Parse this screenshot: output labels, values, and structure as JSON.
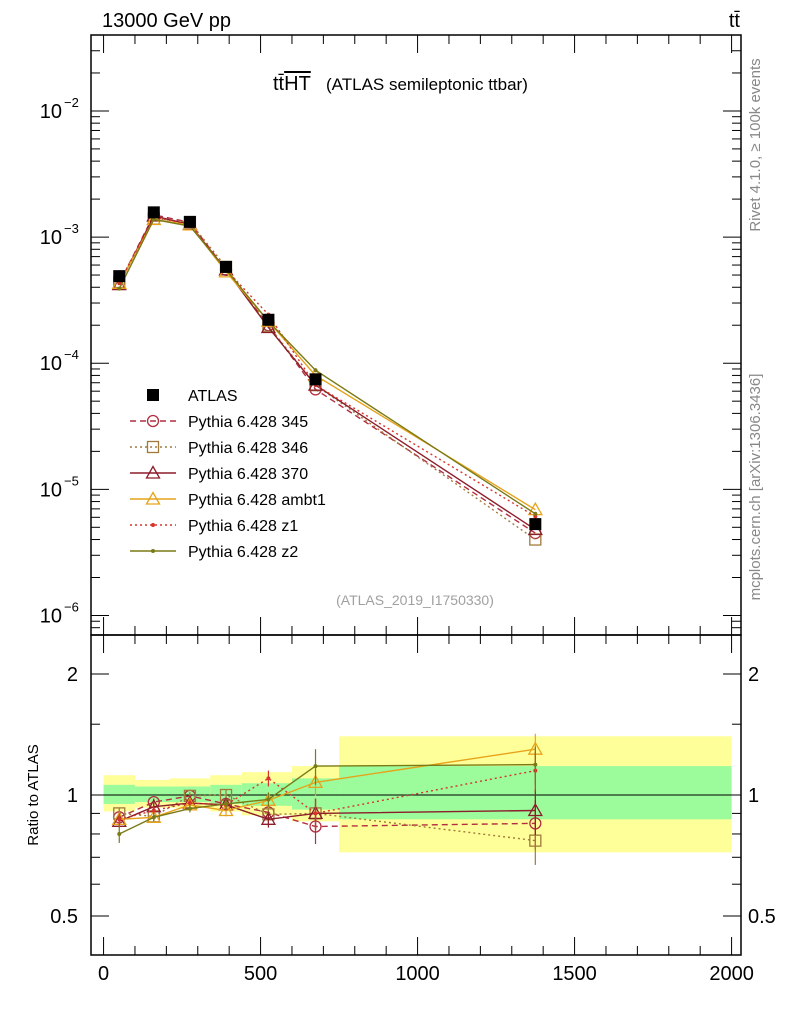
{
  "header": {
    "energy_label": "13000 GeV pp",
    "process_label": "tt̄",
    "plot_title": "tt̄HT",
    "plot_title_hat": "tt̄",
    "plot_title_rest": "HT",
    "plot_subtitle": "(ATLAS semileptonic ttbar)",
    "analysis_id": "(ATLAS_2019_I1750330)"
  },
  "side_labels": {
    "rivet": "Rivet 4.1.0, ≥ 100k events",
    "mcplots": "mcplots.cern.ch [arXiv:1306.3436]"
  },
  "chart_data": {
    "type": "line",
    "x": [
      50,
      160,
      275,
      390,
      525,
      675,
      1375
    ],
    "xlim": [
      -40,
      2030
    ],
    "xticks": [
      0,
      500,
      1000,
      1500,
      2000
    ],
    "main": {
      "scale": "log",
      "ylim": [
        7e-07,
        0.04
      ],
      "yticks": [
        {
          "value": 1e-06,
          "label": "10",
          "exp": "−6"
        },
        {
          "value": 1e-05,
          "label": "10",
          "exp": "−5"
        },
        {
          "value": 0.0001,
          "label": "10",
          "exp": "−4"
        },
        {
          "value": 0.001,
          "label": "10",
          "exp": "−3"
        },
        {
          "value": 0.01,
          "label": "10",
          "exp": "−2"
        }
      ],
      "data_series": {
        "name": "ATLAS",
        "values": [
          0.00049,
          0.00157,
          0.00132,
          0.00058,
          0.000221,
          7.45e-05,
          5.3e-06
        ]
      },
      "series": [
        {
          "name": "Pythia 6.428 345",
          "color": "#b22f41",
          "style": "dashed",
          "marker": "circle",
          "values": [
            0.00043,
            0.0015,
            0.00131,
            0.00055,
            0.0002,
            6.2e-05,
            4.5e-06
          ]
        },
        {
          "name": "Pythia 6.428 346",
          "color": "#a07a3b",
          "style": "dotted",
          "marker": "square",
          "values": [
            0.00044,
            0.0014,
            0.00131,
            0.00058,
            0.000198,
            6.7e-05,
            4e-06
          ]
        },
        {
          "name": "Pythia 6.428 370",
          "color": "#8c1d2a",
          "style": "solid",
          "marker": "triangle",
          "values": [
            0.00042,
            0.00147,
            0.00126,
            0.00055,
            0.000192,
            6.7e-05,
            4.8e-06
          ]
        },
        {
          "name": "Pythia 6.428 ambt1",
          "color": "#e6a31c",
          "style": "solid",
          "marker": "triangle",
          "values": [
            0.00043,
            0.00138,
            0.00125,
            0.00053,
            0.000215,
            8e-05,
            6.9e-06
          ]
        },
        {
          "name": "Pythia 6.428 z1",
          "color": "#d6342d",
          "style": "dotted",
          "marker": "dot",
          "values": [
            0.00043,
            0.00144,
            0.00126,
            0.00055,
            0.000243,
            6.7e-05,
            6.1e-06
          ]
        },
        {
          "name": "Pythia 6.428 z2",
          "color": "#7a7a16",
          "style": "solid",
          "marker": "dot",
          "values": [
            0.00039,
            0.00138,
            0.00122,
            0.00055,
            0.000215,
            8.8e-05,
            6.4e-06
          ]
        }
      ]
    },
    "ratio": {
      "ylabel": "Ratio to ATLAS",
      "scale": "log",
      "ylim": [
        0.4,
        2.5
      ],
      "yticks": [
        {
          "value": 0.5,
          "label": "0.5"
        },
        {
          "value": 1,
          "label": "1"
        },
        {
          "value": 2,
          "label": "2"
        }
      ],
      "bands": [
        {
          "x0": 0,
          "x1": 100,
          "stat_lo": 0.95,
          "stat_hi": 1.06,
          "tot_lo": 0.91,
          "tot_hi": 1.12
        },
        {
          "x0": 100,
          "x1": 210,
          "stat_lo": 0.96,
          "stat_hi": 1.05,
          "tot_lo": 0.93,
          "tot_hi": 1.09
        },
        {
          "x0": 210,
          "x1": 340,
          "stat_lo": 0.96,
          "stat_hi": 1.05,
          "tot_lo": 0.93,
          "tot_hi": 1.1
        },
        {
          "x0": 340,
          "x1": 440,
          "stat_lo": 0.95,
          "stat_hi": 1.06,
          "tot_lo": 0.91,
          "tot_hi": 1.12
        },
        {
          "x0": 440,
          "x1": 600,
          "stat_lo": 0.94,
          "stat_hi": 1.07,
          "tot_lo": 0.89,
          "tot_hi": 1.14
        },
        {
          "x0": 600,
          "x1": 750,
          "stat_lo": 0.92,
          "stat_hi": 1.1,
          "tot_lo": 0.86,
          "tot_hi": 1.18
        },
        {
          "x0": 750,
          "x1": 2000,
          "stat_lo": 0.87,
          "stat_hi": 1.18,
          "tot_lo": 0.72,
          "tot_hi": 1.4
        }
      ],
      "series": [
        {
          "name": "Pythia 6.428 345",
          "values": [
            0.88,
            0.96,
            0.995,
            0.95,
            0.905,
            0.835,
            0.85
          ],
          "errors": [
            0.03,
            0.02,
            0.02,
            0.03,
            0.04,
            0.08,
            0.12
          ]
        },
        {
          "name": "Pythia 6.428 346",
          "values": [
            0.9,
            0.885,
            0.995,
            1.0,
            0.895,
            0.9,
            0.77
          ],
          "errors": [
            0.03,
            0.02,
            0.02,
            0.03,
            0.05,
            0.08,
            0.1
          ]
        },
        {
          "name": "Pythia 6.428 370",
          "values": [
            0.86,
            0.935,
            0.955,
            0.945,
            0.87,
            0.9,
            0.915
          ],
          "errors": [
            0.03,
            0.02,
            0.02,
            0.03,
            0.04,
            0.08,
            0.12
          ]
        },
        {
          "name": "Pythia 6.428 ambt1",
          "values": [
            0.87,
            0.88,
            0.945,
            0.915,
            0.97,
            1.075,
            1.3
          ],
          "errors": [
            0.03,
            0.02,
            0.02,
            0.03,
            0.04,
            0.08,
            0.12
          ]
        },
        {
          "name": "Pythia 6.428 z1",
          "values": [
            0.87,
            0.915,
            0.955,
            0.945,
            1.1,
            0.9,
            1.15
          ],
          "errors": [
            0.03,
            0.02,
            0.02,
            0.03,
            0.05,
            0.08,
            0.13
          ]
        },
        {
          "name": "Pythia 6.428 z2",
          "values": [
            0.8,
            0.88,
            0.925,
            0.95,
            0.975,
            1.18,
            1.19
          ],
          "errors": [
            0.04,
            0.02,
            0.02,
            0.03,
            0.04,
            0.12,
            0.13
          ]
        }
      ]
    }
  }
}
